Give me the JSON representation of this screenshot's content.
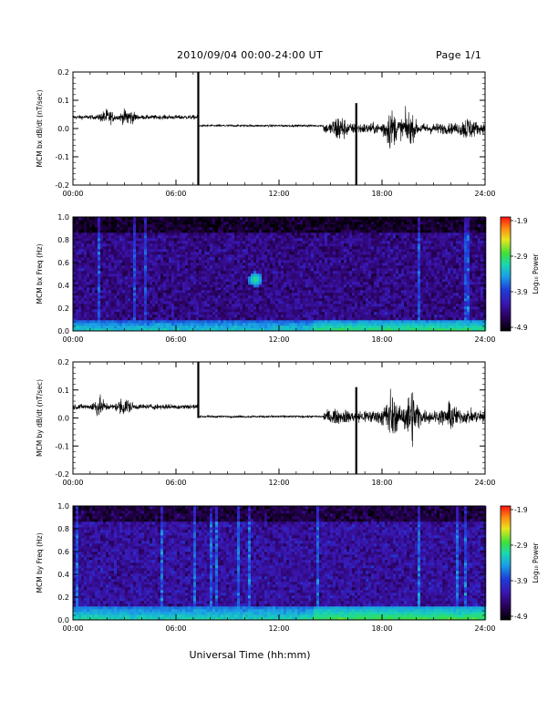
{
  "header": {
    "title": "2010/09/04  00:00-24:00 UT",
    "page": "Page 1/1"
  },
  "colors": {
    "trace": "#000000",
    "axes": "#000000",
    "background": "#ffffff"
  },
  "colorbar": {
    "label": "Log₁₀ Power",
    "ticks": [
      "-1.9",
      "-2.9",
      "-3.9",
      "-4.9"
    ],
    "range": [
      -4.9,
      -1.9
    ],
    "colormap": [
      "#000000",
      "#2a005a",
      "#3a16b0",
      "#1e3cd8",
      "#1aa0e6",
      "#19d6b0",
      "#3ee03a",
      "#e6e61e",
      "#ff8a10",
      "#ff1010"
    ]
  },
  "chart_data": [
    {
      "type": "line",
      "ylabel": "MCM bx dB/dt (nT/sec)",
      "xticks": [
        "00:00",
        "06:00",
        "12:00",
        "18:00",
        "24:00"
      ],
      "xlim": [
        0,
        24
      ],
      "ylim": [
        -0.2,
        0.2
      ],
      "yticks": [
        "-0.2",
        "-0.1",
        "0.0",
        "0.1",
        "0.2"
      ],
      "grid": false,
      "baseline_levels": [
        {
          "from": 0.0,
          "to": 7.3,
          "level": 0.04,
          "amp": 0.008
        },
        {
          "from": 7.3,
          "to": 14.6,
          "level": 0.01,
          "amp": 0.004
        },
        {
          "from": 14.6,
          "to": 24.0,
          "level": 0.0,
          "amp": 0.02
        }
      ],
      "spikes": [
        {
          "t": 7.3,
          "min": -0.2,
          "max": 0.2
        },
        {
          "t": 16.5,
          "min": -0.2,
          "max": 0.09
        }
      ],
      "bursts": [
        {
          "t": 2.0,
          "amp": 0.025
        },
        {
          "t": 3.2,
          "amp": 0.03
        },
        {
          "t": 15.5,
          "amp": 0.04
        },
        {
          "t": 18.5,
          "amp": 0.06
        },
        {
          "t": 19.5,
          "amp": 0.05
        },
        {
          "t": 23.0,
          "amp": 0.03
        }
      ]
    },
    {
      "type": "heatmap",
      "ylabel": "MCM bx Freq (Hz)",
      "xticks": [
        "00:00",
        "06:00",
        "12:00",
        "18:00",
        "24:00"
      ],
      "xlim": [
        0,
        24
      ],
      "ylim": [
        0.0,
        1.0
      ],
      "yticks": [
        "0.0",
        "0.2",
        "0.4",
        "0.6",
        "0.8",
        "1.0"
      ],
      "low_freq_band": {
        "max_freq": 0.1,
        "level": -3.3
      },
      "background_level": -4.4,
      "vertical_lines": [
        {
          "t": 2.8,
          "level": -3.8
        },
        {
          "t": 7.3,
          "level": -2.6
        },
        {
          "t": 14.6,
          "level": -3.7
        },
        {
          "t": 16.5,
          "level": -2.3
        },
        {
          "t": 19.7,
          "level": -3.8
        },
        {
          "t": 23.0,
          "level": -2.7
        }
      ],
      "hotspots": [
        {
          "t": 10.6,
          "f": 0.45,
          "level": -3.0
        }
      ]
    },
    {
      "type": "line",
      "ylabel": "MCM by dB/dt (nT/sec)",
      "xticks": [
        "00:00",
        "06:00",
        "12:00",
        "18:00",
        "24:00"
      ],
      "xlim": [
        0,
        24
      ],
      "ylim": [
        -0.2,
        0.2
      ],
      "yticks": [
        "-0.2",
        "-0.1",
        "0.0",
        "0.1",
        "0.2"
      ],
      "grid": false,
      "baseline_levels": [
        {
          "from": 0.0,
          "to": 7.3,
          "level": 0.04,
          "amp": 0.01
        },
        {
          "from": 7.3,
          "to": 14.6,
          "level": 0.005,
          "amp": 0.004
        },
        {
          "from": 14.6,
          "to": 24.0,
          "level": 0.005,
          "amp": 0.025
        }
      ],
      "spikes": [
        {
          "t": 7.3,
          "min": 0.0,
          "max": 0.2
        },
        {
          "t": 16.5,
          "min": -0.2,
          "max": 0.11
        }
      ],
      "bursts": [
        {
          "t": 1.5,
          "amp": 0.03
        },
        {
          "t": 3.0,
          "amp": 0.03
        },
        {
          "t": 18.5,
          "amp": 0.07
        },
        {
          "t": 19.7,
          "amp": 0.09
        },
        {
          "t": 22.0,
          "amp": 0.03
        }
      ]
    },
    {
      "type": "heatmap",
      "ylabel": "MCM by Freq (Hz)",
      "xticks": [
        "00:00",
        "06:00",
        "12:00",
        "18:00",
        "24:00"
      ],
      "xlabel": "Universal Time (hh:mm)",
      "xlim": [
        0,
        24
      ],
      "ylim": [
        0.0,
        1.0
      ],
      "yticks": [
        "0.0",
        "0.2",
        "0.4",
        "0.6",
        "0.8",
        "1.0"
      ],
      "low_freq_band": {
        "max_freq": 0.12,
        "level": -3.2
      },
      "background_level": -4.3,
      "vertical_lines": [
        {
          "t": 2.8,
          "level": -3.8
        },
        {
          "t": 7.3,
          "level": -2.6
        },
        {
          "t": 8.5,
          "level": -3.6
        },
        {
          "t": 9.0,
          "level": -3.5
        },
        {
          "t": 14.6,
          "level": -3.7
        },
        {
          "t": 15.7,
          "level": -3.3
        },
        {
          "t": 16.5,
          "level": -2.3
        },
        {
          "t": 23.0,
          "level": -2.7
        }
      ],
      "hotspots": []
    }
  ]
}
